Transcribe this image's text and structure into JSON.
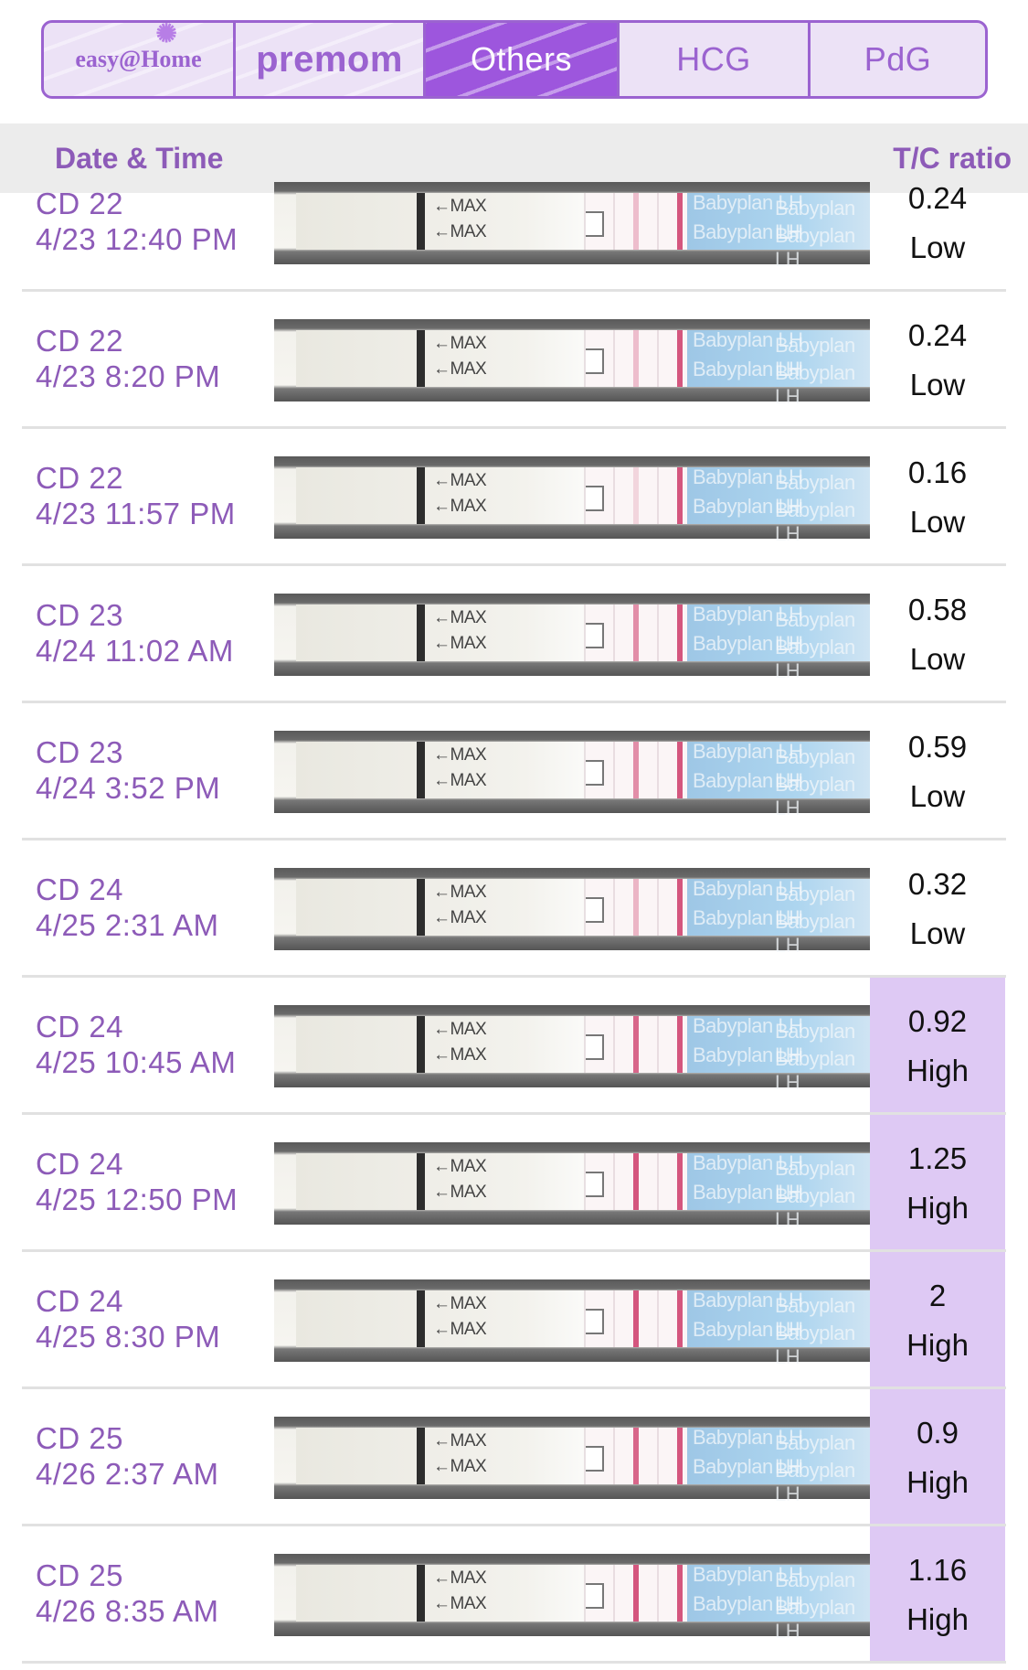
{
  "tabs": [
    {
      "id": "easy",
      "label": "easy@Home",
      "active": false
    },
    {
      "id": "premom",
      "label": "premom",
      "active": false
    },
    {
      "id": "others",
      "label": "Others",
      "active": true
    },
    {
      "id": "hcg",
      "label": "HCG",
      "active": false
    },
    {
      "id": "pdg",
      "label": "PdG",
      "active": false
    }
  ],
  "header": {
    "left": "Date & Time",
    "right": "T/C ratio"
  },
  "strip_text": {
    "max": "←MAX",
    "brand": "Babyplan LH"
  },
  "colors": {
    "accent": "#9b63d0",
    "active_tab": "#9d56dd",
    "high_bg": "#dec9f4",
    "test_line": "#d4567e"
  },
  "rows": [
    {
      "cd": "CD 22",
      "datetime": "4/23 12:40 PM",
      "ratio": "0.24",
      "level": "Low",
      "t_intensity": 0.35
    },
    {
      "cd": "CD 22",
      "datetime": "4/23 8:20 PM",
      "ratio": "0.24",
      "level": "Low",
      "t_intensity": 0.35
    },
    {
      "cd": "CD 22",
      "datetime": "4/23 11:57 PM",
      "ratio": "0.16",
      "level": "Low",
      "t_intensity": 0.2
    },
    {
      "cd": "CD 23",
      "datetime": "4/24 11:02 AM",
      "ratio": "0.58",
      "level": "Low",
      "t_intensity": 0.65
    },
    {
      "cd": "CD 23",
      "datetime": "4/24 3:52 PM",
      "ratio": "0.59",
      "level": "Low",
      "t_intensity": 0.65
    },
    {
      "cd": "CD 24",
      "datetime": "4/25 2:31 AM",
      "ratio": "0.32",
      "level": "Low",
      "t_intensity": 0.4
    },
    {
      "cd": "CD 24",
      "datetime": "4/25 10:45 AM",
      "ratio": "0.92",
      "level": "High",
      "t_intensity": 0.9
    },
    {
      "cd": "CD 24",
      "datetime": "4/25 12:50 PM",
      "ratio": "1.25",
      "level": "High",
      "t_intensity": 1.0
    },
    {
      "cd": "CD 24",
      "datetime": "4/25 8:30 PM",
      "ratio": "2",
      "level": "High",
      "t_intensity": 1.0
    },
    {
      "cd": "CD 25",
      "datetime": "4/26 2:37 AM",
      "ratio": "0.9",
      "level": "High",
      "t_intensity": 0.9
    },
    {
      "cd": "CD 25",
      "datetime": "4/26 8:35 AM",
      "ratio": "1.16",
      "level": "High",
      "t_intensity": 1.0
    }
  ]
}
